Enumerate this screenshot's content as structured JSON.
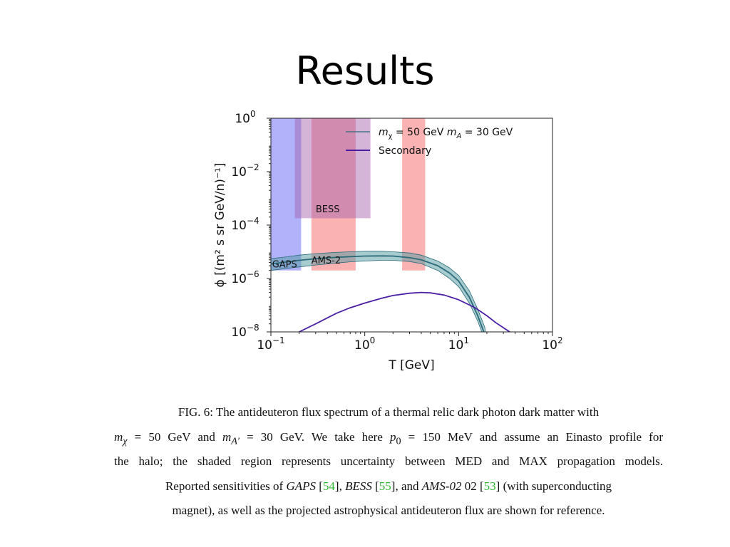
{
  "slide": {
    "title": "Results"
  },
  "chart_data": {
    "type": "line",
    "xscale": "log",
    "yscale": "log",
    "xlim": [
      0.1,
      100
    ],
    "ylim": [
      1e-08,
      1
    ],
    "xlabel": "T [GeV]",
    "ylabel": "ϕ [(m² s sr GeV/n)⁻¹]",
    "x_ticks": [
      {
        "value": 0.1,
        "base": "10",
        "exp": "−1"
      },
      {
        "value": 1,
        "base": "10",
        "exp": "0"
      },
      {
        "value": 10,
        "base": "10",
        "exp": "1"
      },
      {
        "value": 100,
        "base": "10",
        "exp": "2"
      }
    ],
    "y_ticks": [
      {
        "value": 1e-08,
        "base": "10",
        "exp": "−8"
      },
      {
        "value": 1e-06,
        "base": "10",
        "exp": "−6"
      },
      {
        "value": 0.0001,
        "base": "10",
        "exp": "−4"
      },
      {
        "value": 0.01,
        "base": "10",
        "exp": "−2"
      },
      {
        "value": 1,
        "base": "10",
        "exp": "0"
      }
    ],
    "regions": [
      {
        "label": "GAPS",
        "x": [
          0.1,
          0.21
        ],
        "y": [
          2e-06,
          1
        ],
        "color": "#7f7ff7",
        "opacity": 0.6,
        "label_at": [
          0.103,
          2.6e-06
        ]
      },
      {
        "label": "AMS-2",
        "x": [
          0.27,
          0.8
        ],
        "y": [
          2e-06,
          1
        ],
        "color": "#f77f7f",
        "opacity": 0.6,
        "label_at": [
          0.27,
          3.6e-06
        ]
      },
      {
        "label": "",
        "x": [
          2.5,
          4.4
        ],
        "y": [
          2e-06,
          1
        ],
        "color": "#f77f7f",
        "opacity": 0.6
      },
      {
        "label": "BESS",
        "x": [
          0.18,
          1.15
        ],
        "y": [
          0.00018,
          1
        ],
        "color": "#a05aa8",
        "opacity": 0.45,
        "label_at": [
          0.3,
          0.0003
        ]
      }
    ],
    "series": [
      {
        "name": "m_χ = 50 GeV m_A = 30 GeV",
        "legend_parts": [
          {
            "t": "m",
            "italic": true
          },
          {
            "t": "χ",
            "sub": true
          },
          {
            "t": " = 50 GeV "
          },
          {
            "t": "m",
            "italic": true
          },
          {
            "t": "A",
            "sub": true,
            "italic": true
          },
          {
            "t": " = 30 GeV"
          }
        ],
        "color": "#2c6b79",
        "band_color": "#4f9aa2",
        "x": [
          0.1,
          0.15,
          0.2,
          0.3,
          0.5,
          0.7,
          1.0,
          1.5,
          2.0,
          3.0,
          4.0,
          6.0,
          8.0,
          10,
          13,
          16,
          19,
          21
        ],
        "y": [
          3.5e-06,
          4.2e-06,
          4.8e-06,
          5.5e-06,
          6.2e-06,
          6.6e-06,
          6.9e-06,
          7e-06,
          6.9e-06,
          6e-06,
          5e-06,
          3e-06,
          1.6e-06,
          8e-07,
          2e-07,
          4e-08,
          8e-09,
          1e-09
        ],
        "y_low": [
          2e-06,
          2.4e-06,
          2.7e-06,
          3.2e-06,
          3.8e-06,
          4.2e-06,
          4.5e-06,
          4.8e-06,
          4.8e-06,
          4.3e-06,
          3.6e-06,
          2e-06,
          1e-06,
          5e-07,
          1.2e-07,
          2.5e-08,
          5e-09,
          1e-09
        ],
        "y_high": [
          5.5e-06,
          6.5e-06,
          7.5e-06,
          8.5e-06,
          9.5e-06,
          1e-05,
          1.05e-05,
          1.05e-05,
          1e-05,
          9e-06,
          7.5e-06,
          4.5e-06,
          2.5e-06,
          1.3e-06,
          3.5e-07,
          7e-08,
          1.5e-08,
          1e-09
        ]
      },
      {
        "name": "Secondary",
        "legend_parts": [
          {
            "t": "Secondary"
          }
        ],
        "color": "#4b1fa3",
        "x": [
          0.2,
          0.3,
          0.5,
          0.7,
          1.0,
          1.5,
          2.0,
          3.0,
          4.0,
          5.0,
          7.0,
          10,
          15,
          20,
          25,
          35
        ],
        "y": [
          1e-08,
          2e-08,
          5e-08,
          8e-08,
          1.2e-07,
          1.8e-07,
          2.3e-07,
          2.8e-07,
          3e-07,
          2.9e-07,
          2.4e-07,
          1.6e-07,
          8e-08,
          4e-08,
          2.2e-08,
          1e-08
        ]
      }
    ]
  },
  "caption": {
    "line1": "FIG. 6: The antideuteron flux spectrum of a thermal relic dark photon dark matter with",
    "line2": {
      "m1": "m",
      "s1": "χ",
      "t1": " = 50 GeV and ",
      "m2": "m",
      "s2": "A′",
      "t2": " = 30 GeV. We take here ",
      "m3": "p",
      "s3": "0",
      "t3": " = 150 MeV and assume an Einasto profile for"
    },
    "line3": "the halo; the shaded region represents uncertainty between MED and MAX propagation models.",
    "line4": {
      "a": "Reported sensitivities of ",
      "gaps": "GAPS",
      "b": " [",
      "c54": "54",
      "c": "], ",
      "bess": "BESS",
      "d": " [",
      "c55": "55",
      "e": "], and ",
      "ams": "AMS-02",
      "f": " 02 [",
      "c53": "53",
      "g": "] (with superconducting"
    },
    "line5": "magnet), as well as the projected astrophysical antideuteron flux are shown for reference."
  }
}
